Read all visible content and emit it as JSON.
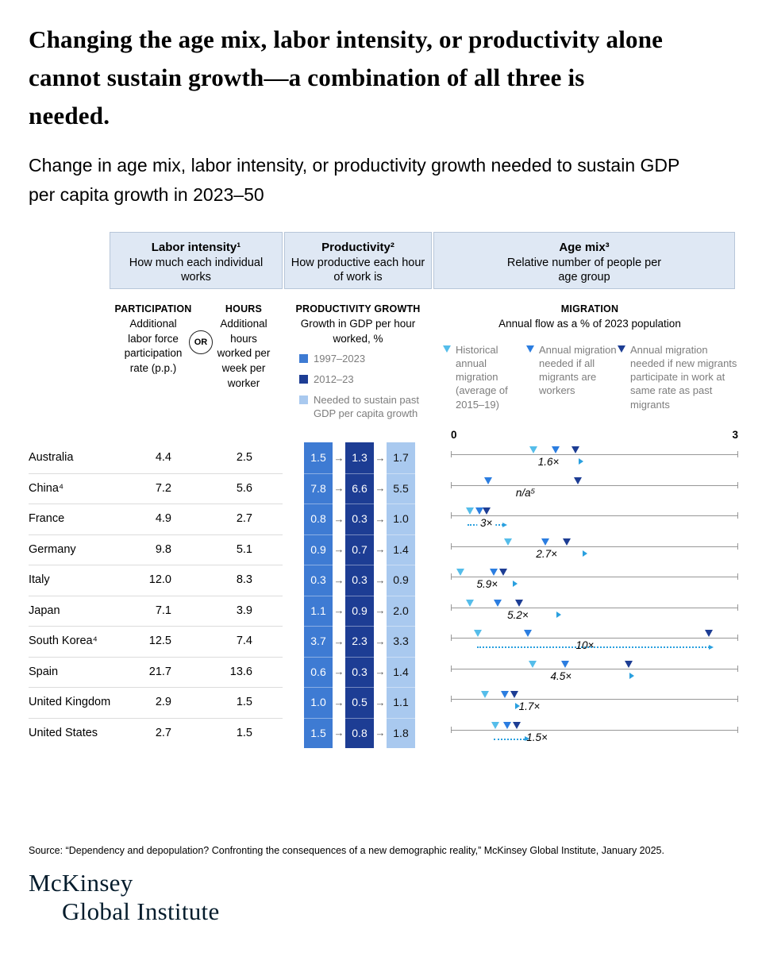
{
  "title": "Changing the age mix, labor intensity, or productivity alone cannot sustain growth—a combination of all three is needed.",
  "subtitle": "Change in age mix, labor intensity, or productivity growth needed to sustain GDP per capita growth in 2023–50",
  "groups": {
    "labor": {
      "title": "Labor intensity¹",
      "desc": "How much each individual works"
    },
    "productivity": {
      "title": "Productivity²",
      "desc": "How productive each hour of work is"
    },
    "agemix": {
      "title": "Age mix³",
      "desc": "Relative number of people per age group"
    }
  },
  "columns": {
    "participation": {
      "title": "PARTICIPATION",
      "desc": "Additional labor force participation rate (p.p.)"
    },
    "or_label": "OR",
    "hours": {
      "title": "HOURS",
      "desc": "Additional hours worked per week per worker"
    },
    "productivity": {
      "title": "PRODUCTIVITY GROWTH",
      "desc": "Growth in GDP per hour worked, %",
      "legend": [
        {
          "label": "1997–2023",
          "color": "#3e7bd3"
        },
        {
          "label": "2012–23",
          "color": "#1d3d94"
        },
        {
          "label": "Needed to sustain past GDP per capita growth",
          "color": "#a9c9ef"
        }
      ]
    },
    "migration": {
      "title": "MIGRATION",
      "desc": "Annual flow as a % of 2023 population",
      "legend": [
        {
          "label": "Historical annual migration (average of 2015–19)",
          "color": "#55bdea"
        },
        {
          "label": "Annual migration needed if all migrants are workers",
          "color": "#2b7de0"
        },
        {
          "label": "Annual migration needed if new migrants participate in work at same rate as past migrants",
          "color": "#1d3d94"
        }
      ],
      "axis": {
        "min": "0",
        "max": "3"
      }
    }
  },
  "chart_data": {
    "type": "table",
    "title": "Change in age mix, labor intensity, or productivity growth needed to sustain GDP per capita growth in 2023–50",
    "migration_axis": {
      "min": 0,
      "max": 3,
      "unit": "annual flow as % of 2023 population"
    },
    "rows": [
      {
        "country": "Australia",
        "participation": "4.4",
        "hours": "2.5",
        "p1997": "1.5",
        "p2012": "1.3",
        "pneeded": "1.7",
        "migration": {
          "historical": 0.86,
          "workers": 1.09,
          "same_rate": 1.3,
          "multiplier": "1.6×",
          "multiplier_x": 1.02,
          "small_arrow_x": 1.36,
          "arrow": null,
          "label_bg": false
        }
      },
      {
        "country": "China⁴",
        "participation": "7.2",
        "hours": "5.6",
        "p1997": "7.8",
        "p2012": "6.6",
        "pneeded": "5.5",
        "migration": {
          "historical": null,
          "workers": 0.39,
          "same_rate": 1.33,
          "multiplier": "n/a⁵",
          "multiplier_x": 0.78,
          "small_arrow_x": null,
          "arrow": null,
          "label_bg": false
        }
      },
      {
        "country": "France",
        "participation": "4.9",
        "hours": "2.7",
        "p1997": "0.8",
        "p2012": "0.3",
        "pneeded": "1.0",
        "migration": {
          "historical": 0.2,
          "workers": 0.3,
          "same_rate": 0.37,
          "multiplier": "3×",
          "multiplier_x": 0.37,
          "small_arrow_x": null,
          "arrow": {
            "from": 0.17,
            "to": 0.57
          },
          "label_bg": true
        }
      },
      {
        "country": "Germany",
        "participation": "9.8",
        "hours": "5.1",
        "p1997": "0.9",
        "p2012": "0.7",
        "pneeded": "1.4",
        "migration": {
          "historical": 0.6,
          "workers": 0.99,
          "same_rate": 1.21,
          "multiplier": "2.7×",
          "multiplier_x": 1.0,
          "small_arrow_x": 1.4,
          "arrow": null,
          "label_bg": false
        }
      },
      {
        "country": "Italy",
        "participation": "12.0",
        "hours": "8.3",
        "p1997": "0.3",
        "p2012": "0.3",
        "pneeded": "0.9",
        "migration": {
          "historical": 0.1,
          "workers": 0.45,
          "same_rate": 0.55,
          "multiplier": "5.9×",
          "multiplier_x": 0.38,
          "small_arrow_x": 0.67,
          "arrow": null,
          "label_bg": false
        }
      },
      {
        "country": "Japan",
        "participation": "7.1",
        "hours": "3.9",
        "p1997": "1.1",
        "p2012": "0.9",
        "pneeded": "2.0",
        "migration": {
          "historical": 0.2,
          "workers": 0.49,
          "same_rate": 0.71,
          "multiplier": "5.2×",
          "multiplier_x": 0.7,
          "small_arrow_x": 1.13,
          "arrow": null,
          "label_bg": false
        }
      },
      {
        "country": "South Korea⁴",
        "participation": "12.5",
        "hours": "7.4",
        "p1997": "3.7",
        "p2012": "2.3",
        "pneeded": "3.3",
        "migration": {
          "historical": 0.28,
          "workers": 0.8,
          "same_rate": 2.69,
          "multiplier": "10×",
          "multiplier_x": 1.4,
          "small_arrow_x": null,
          "arrow": {
            "from": 0.27,
            "to": 2.73
          },
          "label_bg": false
        }
      },
      {
        "country": "Spain",
        "participation": "21.7",
        "hours": "13.6",
        "p1997": "0.6",
        "p2012": "0.3",
        "pneeded": "1.4",
        "migration": {
          "historical": 0.85,
          "workers": 1.19,
          "same_rate": 1.86,
          "multiplier": "4.5×",
          "multiplier_x": 1.15,
          "small_arrow_x": 1.89,
          "arrow": null,
          "label_bg": false
        }
      },
      {
        "country": "United Kingdom",
        "participation": "2.9",
        "hours": "1.5",
        "p1997": "1.0",
        "p2012": "0.5",
        "pneeded": "1.1",
        "migration": {
          "historical": 0.36,
          "workers": 0.56,
          "same_rate": 0.66,
          "multiplier": "1.7×",
          "multiplier_x": 0.82,
          "small_arrow_x": 0.7,
          "arrow": null,
          "label_bg": false
        }
      },
      {
        "country": "United States",
        "participation": "2.7",
        "hours": "1.5",
        "p1997": "1.5",
        "p2012": "0.8",
        "pneeded": "1.8",
        "migration": {
          "historical": 0.46,
          "workers": 0.59,
          "same_rate": 0.69,
          "multiplier": "1.5×",
          "multiplier_x": 0.9,
          "small_arrow_x": null,
          "arrow": {
            "from": 0.45,
            "to": 0.8
          },
          "label_bg": false
        }
      }
    ]
  },
  "source": "Source: “Dependency and depopulation? Confronting the consequences of a new demographic reality,” McKinsey Global Institute, January 2025.",
  "logo": {
    "line1": "McKinsey",
    "line2": "Global Institute"
  },
  "colors": {
    "band_blue": "#3e7bd3",
    "band_navy": "#1d3d94",
    "band_light": "#a9c9ef",
    "tri_light": "#55bdea",
    "tri_mid": "#2b7de0",
    "tri_dark": "#1d3d94",
    "arrow_cyan": "#2aa0df",
    "header_bg": "#dfe8f4",
    "header_border": "#b7c6d9",
    "logo_navy": "#051c2c"
  }
}
